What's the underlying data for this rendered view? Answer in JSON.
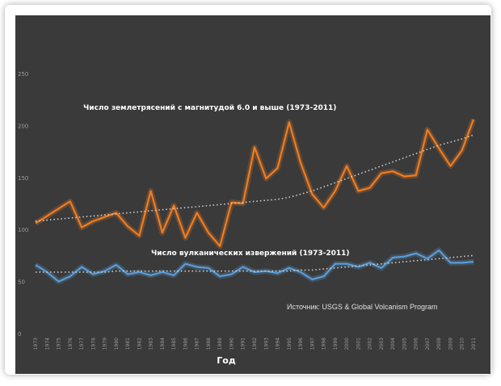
{
  "chart_data": {
    "type": "line",
    "xlabel": "Год",
    "ylim": [
      0,
      250
    ],
    "yticks": [
      0,
      50,
      100,
      150,
      200,
      250
    ],
    "grid": false,
    "source": "Источник: USGS & Global Volcanism Program",
    "categories": [
      "1973",
      "1974",
      "1975",
      "1976",
      "1977",
      "1978",
      "1979",
      "1980",
      "1981",
      "1982",
      "1983",
      "1984",
      "1985",
      "1986",
      "1987",
      "1988",
      "1989",
      "1990",
      "1991",
      "1992",
      "1993",
      "1994",
      "1995",
      "1996",
      "1997",
      "1998",
      "1999",
      "2000",
      "2001",
      "2002",
      "2003",
      "2004",
      "2005",
      "2006",
      "2007",
      "2008",
      "2009",
      "2010",
      "2011"
    ],
    "series": [
      {
        "name": "Число землетрясений с магнитудой 6.0 и выше (1973-2011)",
        "color": "#ee7d22",
        "values": [
          106,
          113,
          120,
          127,
          102,
          108,
          112,
          116,
          103,
          94,
          137,
          97,
          123,
          92,
          116,
          97,
          84,
          126,
          125,
          179,
          149,
          159,
          203,
          164,
          134,
          121,
          137,
          161,
          137,
          140,
          154,
          156,
          151,
          152,
          196,
          178,
          161,
          176,
          206
        ],
        "trend": [
          108,
          109,
          110,
          111,
          112,
          113,
          114,
          115,
          116,
          117,
          118,
          119,
          120,
          121,
          122,
          123,
          124,
          125,
          126,
          127,
          128,
          129,
          131,
          134,
          137,
          141,
          145,
          149,
          153,
          157,
          161,
          165,
          169,
          173,
          177,
          181,
          184,
          187,
          191
        ]
      },
      {
        "name": "Число вулканических извержений (1973-2011)",
        "color": "#5b9bd5",
        "values": [
          66,
          59,
          50,
          55,
          64,
          57,
          60,
          66,
          57,
          59,
          56,
          59,
          56,
          67,
          64,
          63,
          55,
          57,
          64,
          59,
          60,
          58,
          63,
          59,
          52,
          55,
          67,
          67,
          64,
          68,
          63,
          73,
          74,
          77,
          72,
          80,
          68,
          68,
          69
        ],
        "trend": [
          59,
          59,
          59,
          59,
          59,
          59,
          59,
          60,
          60,
          60,
          60,
          60,
          60,
          60,
          60,
          60,
          60,
          60,
          60,
          60,
          60,
          60,
          60,
          61,
          61,
          62,
          63,
          64,
          65,
          66,
          67,
          68,
          69,
          70,
          71,
          72,
          73,
          74,
          75
        ]
      }
    ]
  }
}
